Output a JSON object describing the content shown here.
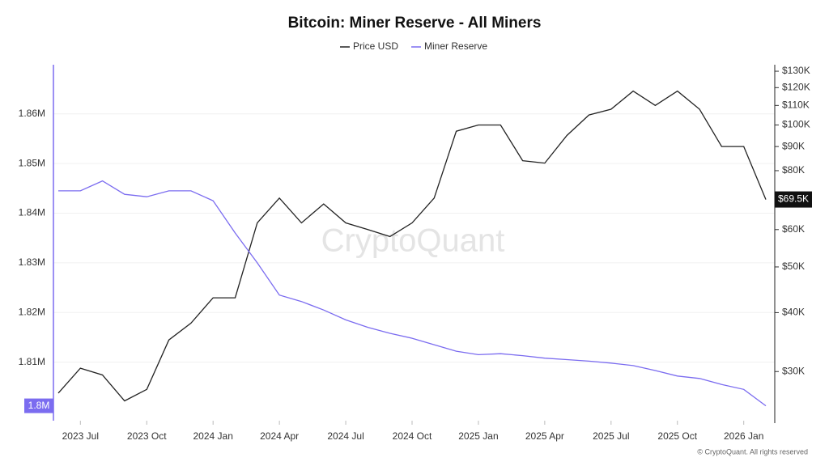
{
  "chart_data": {
    "type": "line",
    "title": "Bitcoin: Miner Reserve - All Miners",
    "watermark": "CryptoQuant",
    "credit": "© CryptoQuant. All rights reserved",
    "x": [
      "2023-06",
      "2023-07",
      "2023-08",
      "2023-09",
      "2023-10",
      "2023-11",
      "2023-12",
      "2024-01",
      "2024-02",
      "2024-03",
      "2024-04",
      "2024-05",
      "2024-06",
      "2024-07",
      "2024-08",
      "2024-09",
      "2024-10",
      "2024-11",
      "2024-12",
      "2025-01",
      "2025-02",
      "2025-03",
      "2025-04",
      "2025-05",
      "2025-06",
      "2025-07",
      "2025-08",
      "2025-09",
      "2025-10",
      "2025-11",
      "2025-12",
      "2026-01",
      "2026-02"
    ],
    "xlim": [
      "2023-06",
      "2026-02"
    ],
    "xticks": [
      {
        "value": "2023-07",
        "label": "2023 Jul"
      },
      {
        "value": "2023-10",
        "label": "2023 Oct"
      },
      {
        "value": "2024-01",
        "label": "2024 Jan"
      },
      {
        "value": "2024-04",
        "label": "2024 Apr"
      },
      {
        "value": "2024-07",
        "label": "2024 Jul"
      },
      {
        "value": "2024-10",
        "label": "2024 Oct"
      },
      {
        "value": "2025-01",
        "label": "2025 Jan"
      },
      {
        "value": "2025-04",
        "label": "2025 Apr"
      },
      {
        "value": "2025-07",
        "label": "2025 Jul"
      },
      {
        "value": "2025-10",
        "label": "2025 Oct"
      },
      {
        "value": "2026-01",
        "label": "2026 Jan"
      }
    ],
    "ylim": [
      1798200,
      1869900
    ],
    "yticks": [
      {
        "value": 1810000,
        "label": "1.81M"
      },
      {
        "value": 1820000,
        "label": "1.82M"
      },
      {
        "value": 1830000,
        "label": "1.83M"
      },
      {
        "value": 1840000,
        "label": "1.84M"
      },
      {
        "value": 1850000,
        "label": "1.85M"
      },
      {
        "value": 1860000,
        "label": "1.86M"
      }
    ],
    "y2lim": [
      23600,
      134200
    ],
    "y2scale": "log",
    "y2ticks": [
      {
        "value": 30000,
        "label": "$30K"
      },
      {
        "value": 40000,
        "label": "$40K"
      },
      {
        "value": 50000,
        "label": "$50K"
      },
      {
        "value": 60000,
        "label": "$60K"
      },
      {
        "value": 80000,
        "label": "$80K"
      },
      {
        "value": 90000,
        "label": "$90K"
      },
      {
        "value": 100000,
        "label": "$100K"
      },
      {
        "value": 110000,
        "label": "$110K"
      },
      {
        "value": 120000,
        "label": "$120K"
      },
      {
        "value": 130000,
        "label": "$130K"
      }
    ],
    "grid": true,
    "series": [
      {
        "name": "Price USD",
        "color": "#222222",
        "axis": "y2",
        "last_value_label": "$69.5K",
        "values": [
          27000,
          30500,
          29500,
          26000,
          27500,
          35000,
          38000,
          43000,
          43000,
          62000,
          70000,
          62000,
          68000,
          62000,
          60000,
          58000,
          62000,
          70000,
          97000,
          100000,
          100000,
          84000,
          83000,
          95000,
          105000,
          108000,
          118000,
          110000,
          118000,
          108000,
          90000,
          90000,
          69500
        ]
      },
      {
        "name": "Miner Reserve",
        "color": "#7b6cf0",
        "last_value_label": "1.8M",
        "values": [
          1844500,
          1844500,
          1846500,
          1843800,
          1843300,
          1844500,
          1844500,
          1842500,
          1836000,
          1830000,
          1823500,
          1822200,
          1820500,
          1818500,
          1817000,
          1815800,
          1814800,
          1813500,
          1812200,
          1811500,
          1811700,
          1811300,
          1810800,
          1810500,
          1810200,
          1809800,
          1809300,
          1808300,
          1807200,
          1806700,
          1805500,
          1804500,
          1801200
        ]
      }
    ]
  }
}
